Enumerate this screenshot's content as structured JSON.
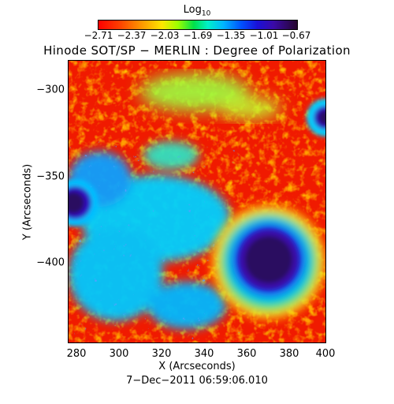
{
  "colorbar": {
    "title_base": "Log",
    "title_sub": "10",
    "tick_labels": [
      "−2.71",
      "−2.37",
      "−2.03",
      "−1.69",
      "−1.35",
      "−1.01",
      "−0.67"
    ],
    "colors": [
      "#ff0000",
      "#ff9a00",
      "#ffe600",
      "#00e04a",
      "#00b4ff",
      "#1a10d8",
      "#26062e"
    ]
  },
  "title": "Hinode SOT/SP − MERLIN : Degree of Polarization",
  "x_axis": {
    "label": "X (Arcseconds)",
    "ticks": [
      "280",
      "300",
      "320",
      "340",
      "360",
      "380",
      "400"
    ]
  },
  "y_axis": {
    "label": "Y (Arcseconds)",
    "ticks": [
      "−300",
      "−350",
      "−400"
    ]
  },
  "date": "7−Dec−2011 06:59:06.010"
}
